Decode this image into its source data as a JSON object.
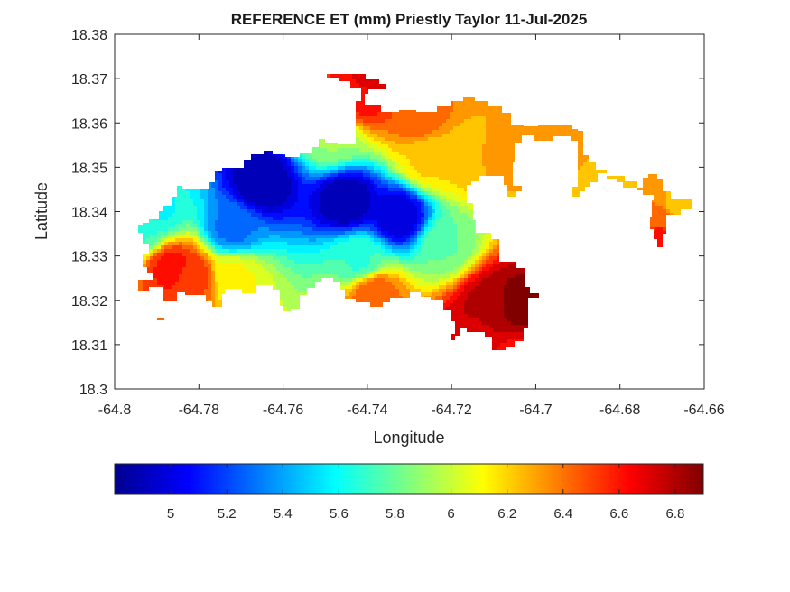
{
  "chart_data": {
    "type": "heatmap",
    "title": "REFERENCE ET (mm) Priestly Taylor 11-Jul-2025",
    "xlabel": "Longitude",
    "ylabel": "Latitude",
    "xlim": [
      -64.8,
      -64.66
    ],
    "ylim": [
      18.3,
      18.38
    ],
    "x_ticks": [
      -64.8,
      -64.78,
      -64.76,
      -64.74,
      -64.72,
      -64.7,
      -64.68,
      -64.66
    ],
    "x_tick_labels": [
      "-64.8",
      "-64.78",
      "-64.76",
      "-64.74",
      "-64.72",
      "-64.7",
      "-64.68",
      "-64.66"
    ],
    "y_ticks": [
      18.3,
      18.31,
      18.32,
      18.33,
      18.34,
      18.35,
      18.36,
      18.37,
      18.38
    ],
    "y_tick_labels": [
      "18.3",
      "18.31",
      "18.32",
      "18.33",
      "18.34",
      "18.35",
      "18.36",
      "18.37",
      "18.38"
    ],
    "colormap": "jet",
    "colorbar": {
      "range": [
        4.8,
        6.9
      ],
      "orientation": "horizontal",
      "placement": "bottom",
      "ticks": [
        5,
        5.2,
        5.4,
        5.6,
        5.8,
        6,
        6.2,
        6.4,
        6.6,
        6.8
      ],
      "tick_labels": [
        "5",
        "5.2",
        "5.4",
        "5.6",
        "5.8",
        "6",
        "6.2",
        "6.4",
        "6.6",
        "6.8"
      ]
    },
    "grid": false,
    "box": true,
    "field_features": [
      {
        "lon": -64.765,
        "lat": 18.3465,
        "value": 4.85
      },
      {
        "lon": -64.745,
        "lat": 18.3425,
        "value": 4.85
      },
      {
        "lon": -64.7325,
        "lat": 18.339,
        "value": 4.95
      },
      {
        "lon": -64.772,
        "lat": 18.336,
        "value": 5.3
      },
      {
        "lon": -64.7895,
        "lat": 18.3405,
        "value": 5.6
      },
      {
        "lon": -64.7935,
        "lat": 18.336,
        "value": 5.7
      },
      {
        "lon": -64.742,
        "lat": 18.329,
        "value": 5.7
      },
      {
        "lon": -64.7485,
        "lat": 18.3565,
        "value": 5.9
      },
      {
        "lon": -64.7215,
        "lat": 18.3325,
        "value": 5.8
      },
      {
        "lon": -64.7715,
        "lat": 18.3255,
        "value": 6.1
      },
      {
        "lon": -64.7385,
        "lat": 18.3215,
        "value": 6.45
      },
      {
        "lon": -64.7255,
        "lat": 18.3515,
        "value": 6.2
      },
      {
        "lon": -64.7175,
        "lat": 18.3525,
        "value": 6.25
      },
      {
        "lon": -64.708,
        "lat": 18.3525,
        "value": 6.3
      },
      {
        "lon": -64.7415,
        "lat": 18.366,
        "value": 6.6
      },
      {
        "lon": -64.728,
        "lat": 18.3615,
        "value": 6.45
      },
      {
        "lon": -64.7395,
        "lat": 18.3695,
        "value": 6.7
      },
      {
        "lon": -64.7105,
        "lat": 18.3195,
        "value": 6.8
      },
      {
        "lon": -64.7048,
        "lat": 18.3195,
        "value": 6.9
      },
      {
        "lon": -64.7145,
        "lat": 18.3125,
        "value": 6.75
      },
      {
        "lon": -64.7055,
        "lat": 18.3055,
        "value": 6.6
      },
      {
        "lon": -64.7865,
        "lat": 18.3275,
        "value": 6.6
      },
      {
        "lon": -64.782,
        "lat": 18.3255,
        "value": 6.55
      },
      {
        "lon": -64.6925,
        "lat": 18.3545,
        "value": 6.3
      },
      {
        "lon": -64.6835,
        "lat": 18.3455,
        "value": 6.2
      },
      {
        "lon": -64.6705,
        "lat": 18.3385,
        "value": 6.4
      },
      {
        "lon": -64.6705,
        "lat": 18.334,
        "value": 6.65
      },
      {
        "lon": -64.6665,
        "lat": 18.3415,
        "value": 6.25
      }
    ]
  }
}
